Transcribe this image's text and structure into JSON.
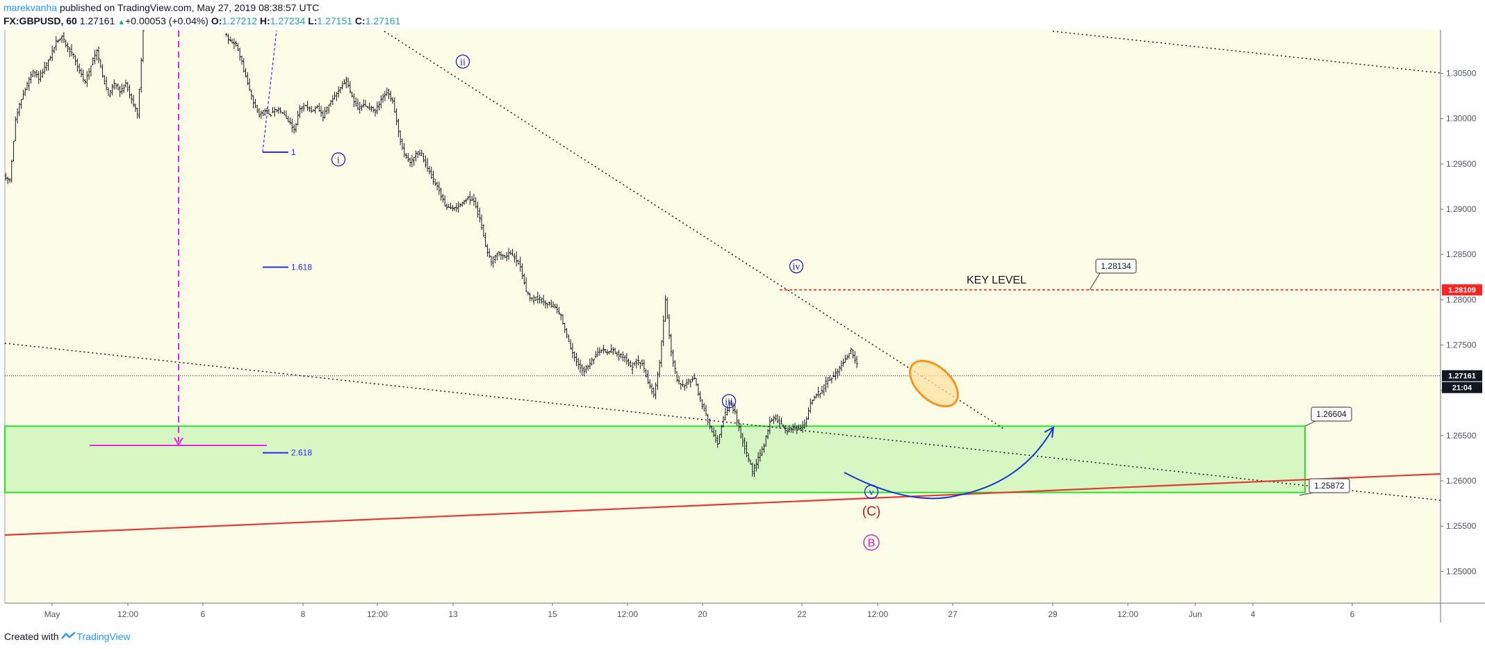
{
  "header": {
    "author": "marekvanha",
    "published": "published on TradingView.com, May 27, 2019 08:38:57 UTC",
    "symbol": "FX:GBPUSD, 60",
    "last": "1.27161",
    "change": "+0.00053 (+0.04%)",
    "open_label": "O:",
    "open": "1.27212",
    "high_label": "H:",
    "high": "1.27234",
    "low_label": "L:",
    "low": "1.27151",
    "close_label": "C:",
    "close": "1.27161"
  },
  "footer": {
    "created_with": "Created with",
    "brand": "TradingView"
  },
  "colors": {
    "candle": "#131722",
    "zone_fill": "#d6f7c3",
    "zone_border": "#2ee02e",
    "key_level": "#ff2222",
    "support_line": "#e53935",
    "wave_label": "#1a1acc",
    "wave_c": "#b71c1c",
    "wave_b": "#c217c2",
    "fib": "#2a2aff",
    "ellipse_stroke": "#f7931e",
    "ellipse_fill": "#fcdfa0",
    "projection": "#e91ee9",
    "curve": "#1638c9"
  },
  "chart_data": {
    "type": "candlestick",
    "symbol": "FX:GBPUSD",
    "timeframe": "60",
    "ylim": [
      1.2465,
      1.3098
    ],
    "x_ticks": [
      "May",
      "12:00",
      "6",
      "8",
      "12:00",
      "13",
      "15",
      "12:00",
      "20",
      "22",
      "12:00",
      "27",
      "29",
      "12:00",
      "Jun",
      "4",
      "6"
    ],
    "y_ticks": [
      "1.30500",
      "1.30000",
      "1.29500",
      "1.29000",
      "1.28500",
      "1.28000",
      "1.27500",
      "1.27000",
      "1.26500",
      "1.26000",
      "1.25500",
      "1.25000"
    ],
    "y_tick_values": [
      1.305,
      1.3,
      1.295,
      1.29,
      1.285,
      1.28,
      1.275,
      1.27,
      1.265,
      1.26,
      1.255,
      1.25
    ],
    "price_path": [
      [
        0,
        1.2935
      ],
      [
        1,
        1.2932
      ],
      [
        2,
        1.2998
      ],
      [
        3,
        1.3022
      ],
      [
        4,
        1.3038
      ],
      [
        5,
        1.3052
      ],
      [
        6,
        1.3045
      ],
      [
        7,
        1.3055
      ],
      [
        8,
        1.3068
      ],
      [
        9,
        1.3085
      ],
      [
        10,
        1.309
      ],
      [
        11,
        1.3078
      ],
      [
        12,
        1.307
      ],
      [
        13,
        1.3052
      ],
      [
        14,
        1.304
      ],
      [
        15,
        1.306
      ],
      [
        16,
        1.3075
      ],
      [
        17,
        1.3048
      ],
      [
        18,
        1.3025
      ],
      [
        19,
        1.304
      ],
      [
        20,
        1.303
      ],
      [
        21,
        1.3038
      ],
      [
        22,
        1.3022
      ],
      [
        23,
        1.3004
      ],
      [
        24,
        1.3095
      ],
      [
        38,
        1.3095
      ],
      [
        39,
        1.3085
      ],
      [
        40,
        1.3082
      ],
      [
        41,
        1.3062
      ],
      [
        42,
        1.3038
      ],
      [
        43,
        1.3018
      ],
      [
        44,
        1.3005
      ],
      [
        45,
        1.3008
      ],
      [
        46,
        1.3005
      ],
      [
        47,
        1.301
      ],
      [
        48,
        1.3008
      ],
      [
        49,
        1.2998
      ],
      [
        50,
        1.2988
      ],
      [
        51,
        1.301
      ],
      [
        52,
        1.3015
      ],
      [
        53,
        1.3008
      ],
      [
        54,
        1.3012
      ],
      [
        55,
        1.3002
      ],
      [
        56,
        1.3015
      ],
      [
        57,
        1.3025
      ],
      [
        58,
        1.3035
      ],
      [
        59,
        1.3042
      ],
      [
        60,
        1.3025
      ],
      [
        61,
        1.301
      ],
      [
        62,
        1.3015
      ],
      [
        63,
        1.3012
      ],
      [
        64,
        1.3008
      ],
      [
        65,
        1.302
      ],
      [
        66,
        1.303
      ],
      [
        67,
        1.3018
      ],
      [
        68,
        1.2985
      ],
      [
        69,
        1.296
      ],
      [
        70,
        1.2952
      ],
      [
        71,
        1.2962
      ],
      [
        72,
        1.296
      ],
      [
        73,
        1.2945
      ],
      [
        74,
        1.2932
      ],
      [
        75,
        1.292
      ],
      [
        76,
        1.2905
      ],
      [
        77,
        1.29
      ],
      [
        78,
        1.2902
      ],
      [
        79,
        1.2908
      ],
      [
        80,
        1.2912
      ],
      [
        81,
        1.2908
      ],
      [
        82,
        1.289
      ],
      [
        83,
        1.286
      ],
      [
        84,
        1.2842
      ],
      [
        85,
        1.2852
      ],
      [
        86,
        1.2848
      ],
      [
        87,
        1.285
      ],
      [
        88,
        1.2848
      ],
      [
        89,
        1.2838
      ],
      [
        90,
        1.2808
      ],
      [
        91,
        1.28
      ],
      [
        92,
        1.2802
      ],
      [
        93,
        1.2798
      ],
      [
        94,
        1.2796
      ],
      [
        95,
        1.2792
      ],
      [
        96,
        1.2782
      ],
      [
        97,
        1.276
      ],
      [
        98,
        1.274
      ],
      [
        99,
        1.2728
      ],
      [
        100,
        1.2722
      ],
      [
        101,
        1.273
      ],
      [
        102,
        1.2738
      ],
      [
        103,
        1.2745
      ],
      [
        104,
        1.2742
      ],
      [
        105,
        1.2745
      ],
      [
        106,
        1.2738
      ],
      [
        107,
        1.2738
      ],
      [
        108,
        1.2725
      ],
      [
        109,
        1.2732
      ],
      [
        110,
        1.273
      ],
      [
        111,
        1.271
      ],
      [
        112,
        1.2695
      ],
      [
        113,
        1.273
      ],
      [
        114,
        1.28
      ],
      [
        115,
        1.2742
      ],
      [
        116,
        1.2712
      ],
      [
        117,
        1.2705
      ],
      [
        118,
        1.271
      ],
      [
        119,
        1.2712
      ],
      [
        120,
        1.269
      ],
      [
        121,
        1.2672
      ],
      [
        122,
        1.2655
      ],
      [
        123,
        1.2642
      ],
      [
        124,
        1.2668
      ],
      [
        125,
        1.2685
      ],
      [
        126,
        1.2675
      ],
      [
        127,
        1.265
      ],
      [
        128,
        1.263
      ],
      [
        129,
        1.261
      ],
      [
        130,
        1.2625
      ],
      [
        131,
        1.264
      ],
      [
        132,
        1.2665
      ],
      [
        133,
        1.267
      ],
      [
        134,
        1.2662
      ],
      [
        135,
        1.2655
      ],
      [
        136,
        1.266
      ],
      [
        137,
        1.2658
      ],
      [
        138,
        1.2662
      ],
      [
        139,
        1.2685
      ],
      [
        140,
        1.2695
      ],
      [
        141,
        1.27
      ],
      [
        142,
        1.2712
      ],
      [
        143,
        1.2716
      ],
      [
        144,
        1.2725
      ],
      [
        145,
        1.2735
      ],
      [
        146,
        1.2745
      ],
      [
        147,
        1.2728
      ]
    ],
    "key_level": {
      "label": "KEY LEVEL",
      "price": 1.28109,
      "price_label": "1.28109",
      "callout": "1.28134"
    },
    "current_price": {
      "price": 1.27161,
      "label": "1.27161",
      "countdown": "21:04"
    },
    "support_zone": {
      "top": 1.26604,
      "bottom": 1.25872,
      "top_label": "1.26604",
      "bottom_label": "1.25872"
    },
    "fib_levels": [
      {
        "label": "1",
        "price": 1.2963
      },
      {
        "label": "1.618",
        "price": 1.2836
      },
      {
        "label": "2.618",
        "price": 1.2631
      }
    ],
    "wave_labels": [
      {
        "text": "i",
        "price": 1.2955
      },
      {
        "text": "ii",
        "price": 1.3063
      },
      {
        "text": "iii",
        "price": 1.2688
      },
      {
        "text": "iv",
        "price": 1.2837
      },
      {
        "text": "v",
        "price": 1.2588
      },
      {
        "text": "(C)",
        "price": 1.2567
      },
      {
        "text": "B",
        "price": 1.2532
      }
    ]
  }
}
